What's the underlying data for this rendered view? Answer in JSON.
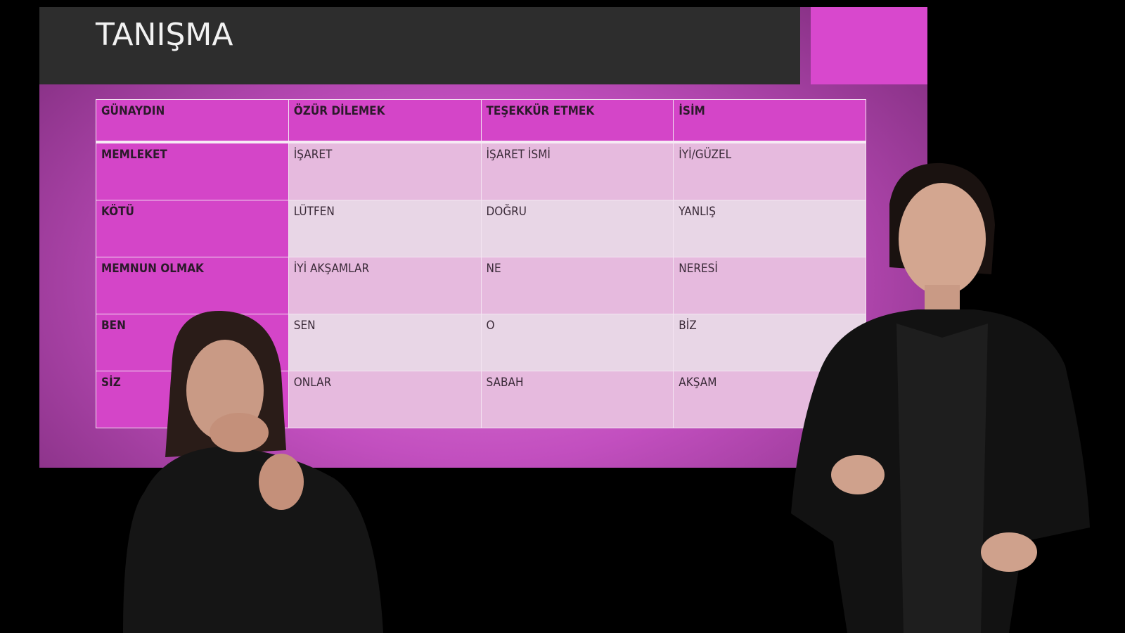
{
  "slide": {
    "title": "TANIŞMA",
    "accent_color": "#d848cd",
    "table": {
      "header": [
        "GÜNAYDIN",
        "ÖZÜR DİLEMEK",
        "TEŞEKKÜR ETMEK",
        "İSİM"
      ],
      "rows": [
        [
          "MEMLEKET",
          "İŞARET",
          "İŞARET İSMİ",
          "İYİ/GÜZEL"
        ],
        [
          "KÖTÜ",
          "LÜTFEN",
          "DOĞRU",
          "YANLIŞ"
        ],
        [
          "MEMNUN OLMAK",
          "İYİ AKŞAMLAR",
          "NE",
          "NERESİ"
        ],
        [
          "BEN",
          "SEN",
          "O",
          "BİZ"
        ],
        [
          "SİZ",
          "ONLAR",
          "SABAH",
          "AKŞAM"
        ]
      ]
    }
  }
}
